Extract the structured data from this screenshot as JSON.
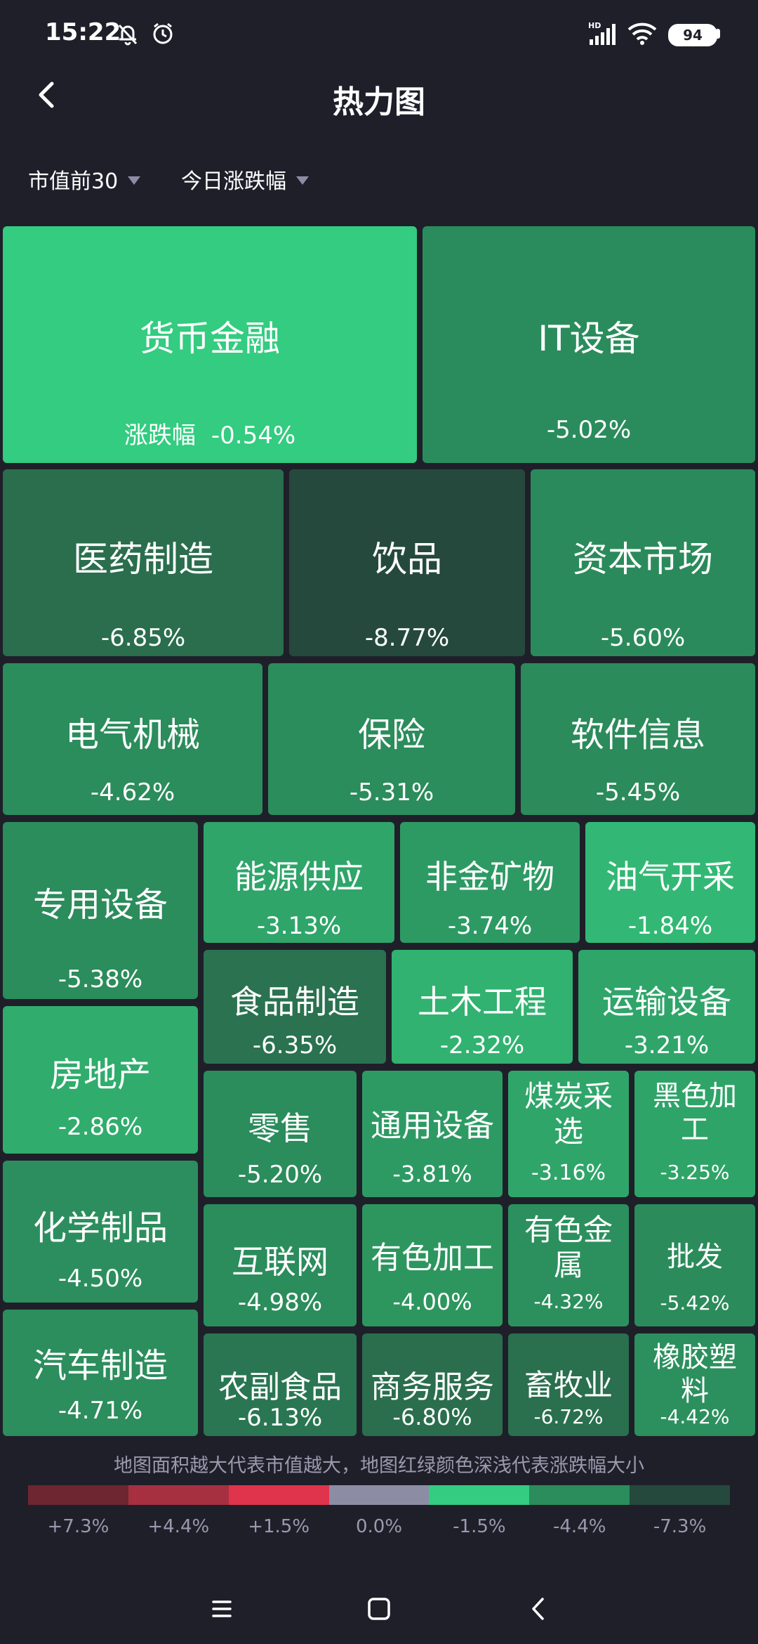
{
  "status": {
    "time": "15:22",
    "battery": "94"
  },
  "header": {
    "title": "热力图"
  },
  "filters": [
    {
      "label": "市值前30"
    },
    {
      "label": "今日涨跌幅"
    }
  ],
  "heatmap": {
    "first_tile_prefix": "涨跌幅",
    "tiles": [
      {
        "name": "货币金融",
        "change": "-0.54%",
        "color": "#33cc80"
      },
      {
        "name": "IT设备",
        "change": "-5.02%",
        "color": "#2a8c5c"
      },
      {
        "name": "医药制造",
        "change": "-6.85%",
        "color": "#2a6e4d"
      },
      {
        "name": "饮品",
        "change": "-8.77%",
        "color": "#25493d"
      },
      {
        "name": "资本市场",
        "change": "-5.60%",
        "color": "#2b8a5b"
      },
      {
        "name": "电气机械",
        "change": "-4.62%",
        "color": "#2b8c5c"
      },
      {
        "name": "保险",
        "change": "-5.31%",
        "color": "#2b8c5c"
      },
      {
        "name": "软件信息",
        "change": "-5.45%",
        "color": "#2b8b5b"
      },
      {
        "name": "专用设备",
        "change": "-5.38%",
        "color": "#2b8c5c"
      },
      {
        "name": "能源供应",
        "change": "-3.13%",
        "color": "#2fa56a"
      },
      {
        "name": "非金矿物",
        "change": "-3.74%",
        "color": "#2d9a64"
      },
      {
        "name": "油气开采",
        "change": "-1.84%",
        "color": "#32b874"
      },
      {
        "name": "食品制造",
        "change": "-6.35%",
        "color": "#2a7250"
      },
      {
        "name": "土木工程",
        "change": "-2.32%",
        "color": "#31b270"
      },
      {
        "name": "运输设备",
        "change": "-3.21%",
        "color": "#2fa56a"
      },
      {
        "name": "房地产",
        "change": "-2.86%",
        "color": "#30ac6d"
      },
      {
        "name": "零售",
        "change": "-5.20%",
        "color": "#2b8c5c"
      },
      {
        "name": "通用设备",
        "change": "-3.81%",
        "color": "#2d9a64"
      },
      {
        "name": "煤炭采选",
        "change": "-3.16%",
        "color": "#2fa56a"
      },
      {
        "name": "黑色加工",
        "change": "-3.25%",
        "color": "#2fa468"
      },
      {
        "name": "化学制品",
        "change": "-4.50%",
        "color": "#2c8e5e"
      },
      {
        "name": "互联网",
        "change": "-4.98%",
        "color": "#2b8c5c"
      },
      {
        "name": "有色加工",
        "change": "-4.00%",
        "color": "#2d965f"
      },
      {
        "name": "有色金属",
        "change": "-4.32%",
        "color": "#2c905e"
      },
      {
        "name": "批发",
        "change": "-5.42%",
        "color": "#2b8b5b"
      },
      {
        "name": "汽车制造",
        "change": "-4.71%",
        "color": "#2c8d5d"
      },
      {
        "name": "农副食品",
        "change": "-6.13%",
        "color": "#2a7652"
      },
      {
        "name": "商务服务",
        "change": "-6.80%",
        "color": "#2a6e4d"
      },
      {
        "name": "畜牧业",
        "change": "-6.72%",
        "color": "#2a6f4e"
      },
      {
        "name": "橡胶塑料",
        "change": "-4.42%",
        "color": "#2c905e"
      }
    ]
  },
  "legend": {
    "note": "地图面积越大代表市值越大，地图红绿颜色深浅代表涨跌幅大小",
    "segments": [
      {
        "label": "+7.3%",
        "color": "#6e2631"
      },
      {
        "label": "+4.4%",
        "color": "#a63040"
      },
      {
        "label": "+1.5%",
        "color": "#e0344c"
      },
      {
        "label": "0.0%",
        "color": "#8c8ca4"
      },
      {
        "label": "-1.5%",
        "color": "#33cc80"
      },
      {
        "label": "-4.4%",
        "color": "#2b8c5c"
      },
      {
        "label": "-7.3%",
        "color": "#25493d"
      }
    ]
  }
}
